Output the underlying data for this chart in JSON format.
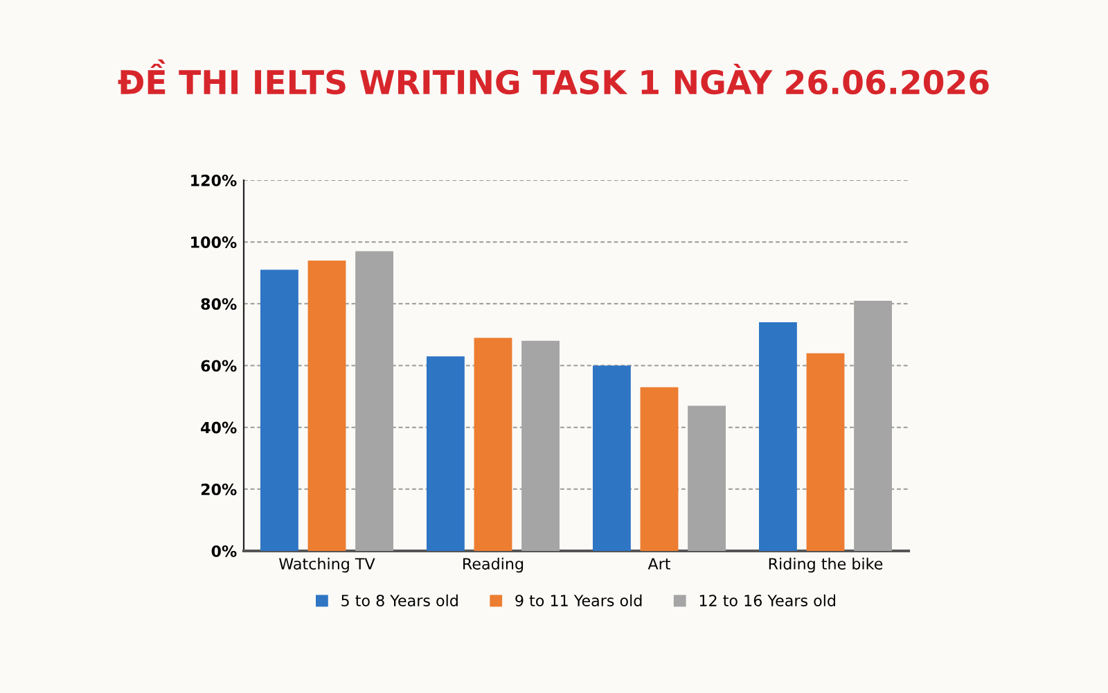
{
  "chart_data": {
    "type": "bar",
    "title": "ĐỀ THI IELTS WRITING TASK 1 NGÀY 26.06.2026",
    "categories": [
      "Watching TV",
      "Reading",
      "Art",
      "Riding the bike"
    ],
    "series": [
      {
        "name": "5 to 8 Years old",
        "color": "#2e75c4",
        "values": [
          91,
          63,
          60,
          74
        ]
      },
      {
        "name": "9 to 11 Years old",
        "color": "#ed7d31",
        "values": [
          94,
          69,
          53,
          64
        ]
      },
      {
        "name": "12 to 16 Years old",
        "color": "#a5a5a5",
        "values": [
          97,
          68,
          47,
          81
        ]
      }
    ],
    "ylim": [
      0,
      120
    ],
    "yticks": [
      {
        "value": 0,
        "label": "0%"
      },
      {
        "value": 20,
        "label": "20%"
      },
      {
        "value": 40,
        "label": "40%"
      },
      {
        "value": 60,
        "label": "60%"
      },
      {
        "value": 80,
        "label": "80%"
      },
      {
        "value": 100,
        "label": "100%"
      },
      {
        "value": 120,
        "label": "120%"
      }
    ],
    "grid": "y",
    "legend": "bottom"
  }
}
